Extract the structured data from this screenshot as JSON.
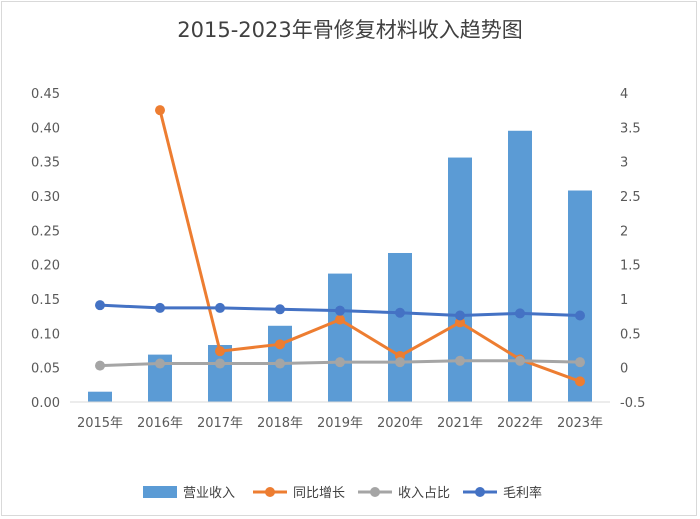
{
  "chart_data": {
    "type": "bar",
    "title": "2015-2023年骨修复材料收入趋势图",
    "categories": [
      "2015年",
      "2016年",
      "2017年",
      "2018年",
      "2019年",
      "2020年",
      "2021年",
      "2022年",
      "2023年"
    ],
    "y_left": {
      "ticks": [
        "0.00",
        "0.05",
        "0.10",
        "0.15",
        "0.20",
        "0.25",
        "0.30",
        "0.35",
        "0.40",
        "0.45"
      ],
      "ylim": [
        0,
        0.45
      ]
    },
    "y_right": {
      "ticks": [
        "-0.5",
        "0",
        "0.5",
        "1",
        "1.5",
        "2",
        "2.5",
        "3",
        "3.5",
        "4"
      ],
      "ylim": [
        -0.5,
        4
      ]
    },
    "series": [
      {
        "name": "营业收入",
        "kind": "bar",
        "axis": "left",
        "color": "#5b9bd5",
        "values": [
          0.015,
          0.069,
          0.083,
          0.111,
          0.187,
          0.217,
          0.356,
          0.395,
          0.308
        ]
      },
      {
        "name": "同比增长",
        "kind": "line",
        "axis": "right",
        "color": "#ed7d31",
        "values": [
          null,
          3.75,
          0.24,
          0.34,
          0.7,
          0.17,
          0.66,
          0.12,
          -0.2
        ]
      },
      {
        "name": "收入占比",
        "kind": "line",
        "axis": "right",
        "color": "#a5a5a5",
        "values": [
          0.03,
          0.06,
          0.06,
          0.06,
          0.08,
          0.08,
          0.1,
          0.1,
          0.08
        ]
      },
      {
        "name": "毛利率",
        "kind": "line",
        "axis": "right",
        "color": "#4472c4",
        "values": [
          0.91,
          0.87,
          0.87,
          0.85,
          0.83,
          0.8,
          0.76,
          0.79,
          0.76
        ]
      }
    ],
    "grid": false,
    "legend": "bottom"
  }
}
